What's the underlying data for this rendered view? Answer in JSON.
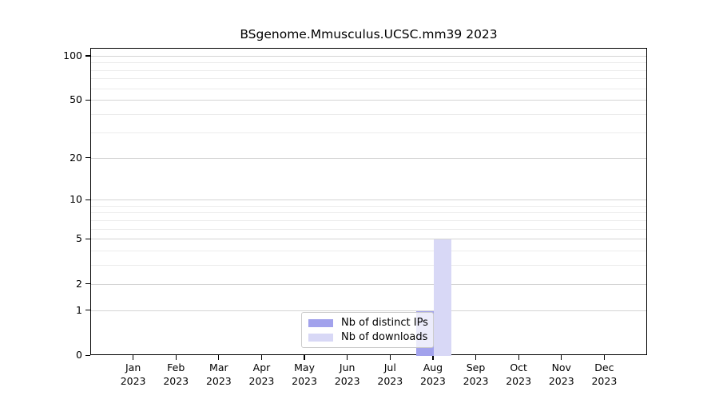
{
  "title": "BSgenome.Mmusculus.UCSC.mm39 2023",
  "chart_data": {
    "type": "bar",
    "title": "BSgenome.Mmusculus.UCSC.mm39 2023",
    "categories": [
      "Jan",
      "Feb",
      "Mar",
      "Apr",
      "May",
      "Jun",
      "Jul",
      "Aug",
      "Sep",
      "Oct",
      "Nov",
      "Dec"
    ],
    "x_year": "2023",
    "series": [
      {
        "name": "Nb of distinct IPs",
        "color": "#a2a2ec",
        "values": [
          0,
          0,
          0,
          0,
          0,
          0,
          0,
          1,
          0,
          0,
          0,
          0
        ]
      },
      {
        "name": "Nb of downloads",
        "color": "#d8d8f6",
        "values": [
          0,
          0,
          0,
          0,
          0,
          0,
          0,
          5,
          0,
          0,
          0,
          0
        ]
      }
    ],
    "xlabel": "",
    "ylabel": "",
    "y_scale": "log1p",
    "ylim": [
      0,
      113
    ],
    "y_major_ticks": [
      0,
      1,
      2,
      5,
      10,
      20,
      50,
      100
    ],
    "y_minor_gridlines": [
      3,
      4,
      6,
      7,
      8,
      9,
      30,
      40,
      60,
      70,
      80,
      90
    ],
    "grid": "on",
    "legend_position": "bottom-center",
    "colors": {
      "grid_major": "#d4d4d4",
      "grid_minor": "#ececec",
      "axis": "#000000",
      "background": "#ffffff"
    }
  }
}
